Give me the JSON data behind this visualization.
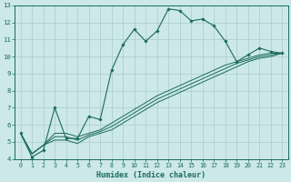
{
  "xlabel": "Humidex (Indice chaleur)",
  "bg_color": "#cce8e8",
  "grid_color": "#aacccc",
  "line_color": "#1a6b5e",
  "xlim": [
    -0.5,
    23.5
  ],
  "ylim": [
    4,
    13
  ],
  "xticks": [
    0,
    1,
    2,
    3,
    4,
    5,
    6,
    7,
    8,
    9,
    10,
    11,
    12,
    13,
    14,
    15,
    16,
    17,
    18,
    19,
    20,
    21,
    22,
    23
  ],
  "yticks": [
    4,
    5,
    6,
    7,
    8,
    9,
    10,
    11,
    12,
    13
  ],
  "series": [
    [
      5.5,
      4.1,
      4.5,
      7.0,
      5.2,
      5.2,
      6.5,
      6.3,
      9.2,
      10.7,
      11.6,
      10.9,
      11.5,
      12.8,
      12.7,
      12.1,
      12.2,
      11.8,
      10.9,
      9.7,
      10.1,
      10.5,
      10.3,
      10.2
    ],
    [
      5.5,
      4.3,
      4.8,
      5.5,
      5.5,
      5.3,
      5.5,
      5.7,
      6.1,
      6.5,
      6.9,
      7.3,
      7.7,
      8.0,
      8.3,
      8.6,
      8.9,
      9.2,
      9.5,
      9.7,
      9.9,
      10.1,
      10.2,
      10.2
    ],
    [
      5.5,
      4.3,
      4.8,
      5.3,
      5.3,
      5.1,
      5.4,
      5.6,
      5.9,
      6.3,
      6.7,
      7.1,
      7.5,
      7.8,
      8.1,
      8.4,
      8.7,
      9.0,
      9.3,
      9.6,
      9.8,
      10.0,
      10.1,
      10.2
    ],
    [
      5.5,
      4.3,
      4.8,
      5.1,
      5.1,
      4.9,
      5.3,
      5.5,
      5.7,
      6.1,
      6.5,
      6.9,
      7.3,
      7.6,
      7.9,
      8.2,
      8.5,
      8.8,
      9.1,
      9.4,
      9.7,
      9.9,
      10.0,
      10.2
    ]
  ]
}
